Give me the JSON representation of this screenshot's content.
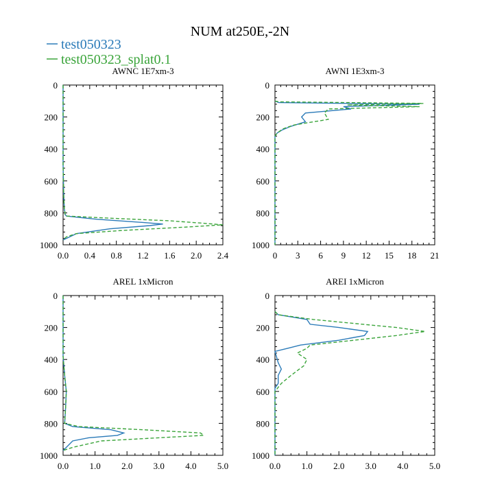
{
  "title": "NUM at250E,-2N",
  "legend": [
    {
      "label": "test050323",
      "color": "#2a7ab8",
      "dash": "solid"
    },
    {
      "label": "test050323_splat0.1",
      "color": "#3aa43a",
      "dash": "dashed"
    }
  ],
  "chart_data": [
    {
      "type": "line",
      "title": "AWNC  1E7xm-3",
      "xlim": [
        0,
        2.4
      ],
      "ylim": [
        1000,
        0
      ],
      "xticks": [
        "0.0",
        "0.4",
        "0.8",
        "1.2",
        "1.6",
        "2.0",
        "2.4"
      ],
      "yticks": [
        "0",
        "200",
        "400",
        "600",
        "800",
        "1000"
      ],
      "series": [
        {
          "name": "test050323",
          "x": [
            0,
            0,
            0.01,
            0.02,
            0.03,
            0.03,
            0.05,
            0.5,
            1.2,
            1.5,
            1.3,
            0.7,
            0.2,
            0.1,
            0
          ],
          "y": [
            0,
            500,
            700,
            780,
            800,
            810,
            820,
            840,
            860,
            870,
            880,
            900,
            930,
            950,
            970
          ]
        },
        {
          "name": "test050323_splat0.1",
          "x": [
            0,
            0,
            0.01,
            0.02,
            0.03,
            0.03,
            0.05,
            0.8,
            1.6,
            2.1,
            2.4,
            1.8,
            0.9,
            0.2,
            0.05,
            0
          ],
          "y": [
            0,
            500,
            700,
            780,
            800,
            810,
            820,
            835,
            850,
            865,
            875,
            890,
            910,
            930,
            950,
            970
          ]
        }
      ]
    },
    {
      "type": "line",
      "title": "AWNI  1E3xm-3",
      "xlim": [
        0,
        21
      ],
      "ylim": [
        1000,
        0
      ],
      "xticks": [
        "0",
        "3",
        "6",
        "9",
        "12",
        "15",
        "18",
        "21"
      ],
      "yticks": [
        "0",
        "200",
        "400",
        "600",
        "800",
        "1000"
      ],
      "series": [
        {
          "name": "test050323",
          "x": [
            0,
            0.5,
            19,
            9,
            10,
            4,
            3.5,
            4,
            2,
            1,
            0.3,
            0,
            0
          ],
          "y": [
            100,
            110,
            120,
            135,
            150,
            175,
            200,
            230,
            260,
            280,
            300,
            320,
            1000
          ]
        },
        {
          "name": "test050323_splat0.1",
          "x": [
            0,
            0.5,
            19.5,
            9.5,
            19,
            7,
            6.5,
            7,
            2.5,
            1,
            0.3,
            0,
            0
          ],
          "y": [
            100,
            105,
            115,
            125,
            135,
            150,
            175,
            215,
            250,
            275,
            300,
            320,
            1000
          ]
        }
      ]
    },
    {
      "type": "line",
      "title": "AREL  1xMicron",
      "xlim": [
        0,
        5.0
      ],
      "ylim": [
        1000,
        0
      ],
      "xticks": [
        "0.0",
        "1.0",
        "2.0",
        "3.0",
        "4.0",
        "5.0"
      ],
      "yticks": [
        "0",
        "200",
        "400",
        "600",
        "800",
        "1000"
      ],
      "series": [
        {
          "name": "test050323",
          "x": [
            0,
            0,
            0.05,
            0.1,
            0.08,
            0.05,
            0.3,
            1.5,
            1.9,
            1.7,
            0.8,
            0.3,
            0.1,
            0
          ],
          "y": [
            0,
            380,
            500,
            600,
            700,
            800,
            820,
            840,
            860,
            875,
            890,
            910,
            950,
            970
          ]
        },
        {
          "name": "test050323_splat0.1",
          "x": [
            0,
            0,
            0.05,
            0.1,
            0.08,
            0.05,
            0.5,
            2.5,
            4.3,
            4.4,
            3.0,
            1.2,
            0.3,
            0
          ],
          "y": [
            0,
            380,
            500,
            600,
            700,
            800,
            820,
            840,
            860,
            875,
            890,
            910,
            950,
            970
          ]
        }
      ]
    },
    {
      "type": "line",
      "title": "AREI  1xMicron",
      "xlim": [
        0,
        5.0
      ],
      "ylim": [
        1000,
        0
      ],
      "xticks": [
        "0.0",
        "1.0",
        "2.0",
        "3.0",
        "4.0",
        "5.0"
      ],
      "yticks": [
        "0",
        "200",
        "400",
        "600",
        "800",
        "1000"
      ],
      "series": [
        {
          "name": "test050323",
          "x": [
            0,
            0.1,
            1.0,
            1.1,
            2.0,
            2.9,
            2.8,
            2.0,
            0.8,
            0.4,
            0,
            0.1,
            0.2,
            0.1,
            0.1,
            0,
            0
          ],
          "y": [
            100,
            120,
            150,
            180,
            200,
            225,
            250,
            280,
            310,
            330,
            350,
            420,
            460,
            500,
            550,
            580,
            1000
          ]
        },
        {
          "name": "test050323_splat0.1",
          "x": [
            0,
            0.1,
            1.2,
            2.5,
            3.8,
            4.7,
            3.8,
            2.0,
            1.1,
            1.0,
            0.7,
            1.0,
            0.9,
            0.5,
            0.2,
            0,
            0
          ],
          "y": [
            100,
            120,
            150,
            175,
            200,
            225,
            250,
            290,
            310,
            330,
            360,
            400,
            440,
            500,
            550,
            600,
            1000
          ]
        }
      ]
    }
  ]
}
